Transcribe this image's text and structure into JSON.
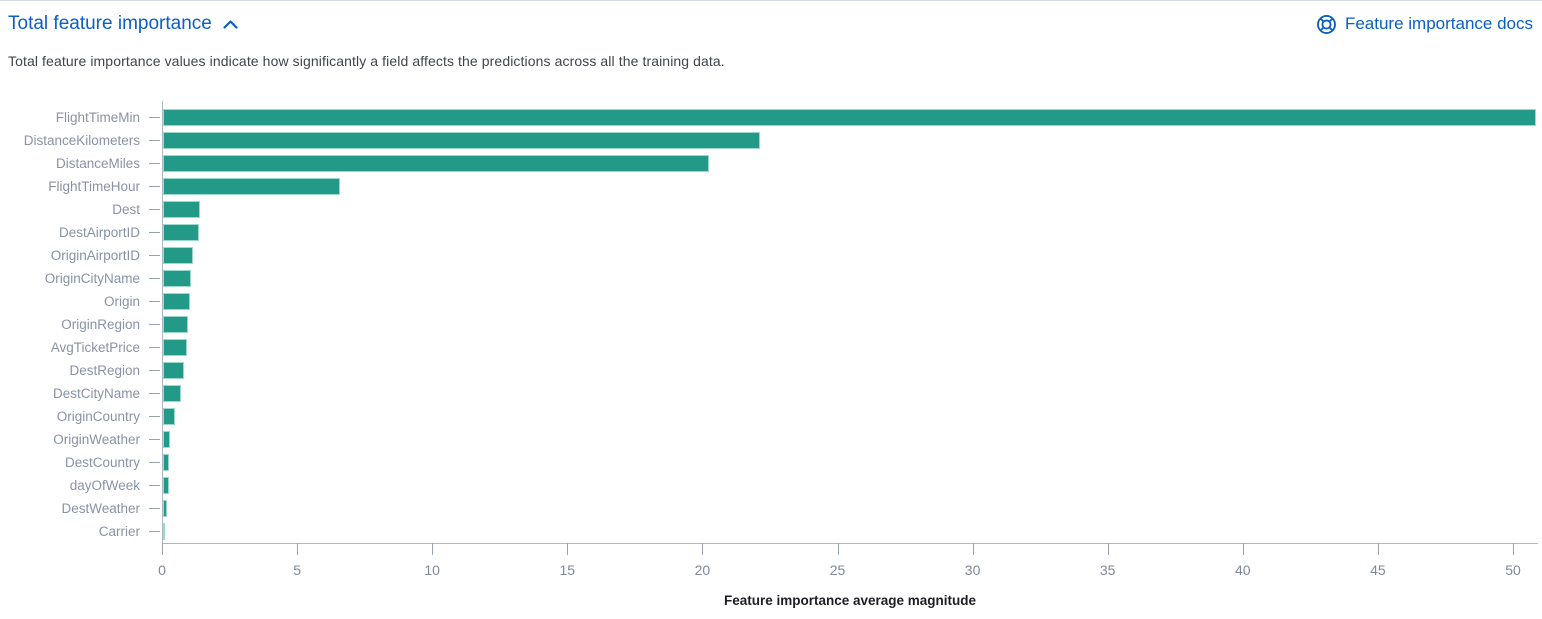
{
  "header": {
    "title": "Total feature importance",
    "docs_link": "Feature importance docs",
    "description": "Total feature importance values indicate how significantly a field affects the predictions across all the training data."
  },
  "icons": {
    "collapse": "chevron-up-icon",
    "docs": "documentation-icon"
  },
  "colors": {
    "link_blue": "#0A5FC8",
    "bar_teal": "#239987",
    "bar_stroke": "#9BD9CA",
    "axis_line": "#AFB6C4",
    "tick_mark": "#98A2B3",
    "tick_label": "#7F8899",
    "y_label": "#8A92A6",
    "axis_title_text": "#1D1E24",
    "description_text": "#3F444E"
  },
  "chart_data": {
    "type": "bar",
    "orientation": "horizontal",
    "title": "Total feature importance",
    "xlabel": "Feature importance average magnitude",
    "ylabel": "",
    "xlim": [
      0,
      50.8
    ],
    "xticks": [
      0,
      5,
      10,
      15,
      20,
      25,
      30,
      35,
      40,
      45,
      50
    ],
    "grid": false,
    "legend": false,
    "categories": [
      "FlightTimeMin",
      "DistanceKilometers",
      "DistanceMiles",
      "FlightTimeHour",
      "Dest",
      "DestAirportID",
      "OriginAirportID",
      "OriginCityName",
      "Origin",
      "OriginRegion",
      "AvgTicketPrice",
      "DestRegion",
      "DestCityName",
      "OriginCountry",
      "OriginWeather",
      "DestCountry",
      "dayOfWeek",
      "DestWeather",
      "Carrier"
    ],
    "values": [
      50.8,
      22.1,
      20.2,
      6.55,
      1.36,
      1.34,
      1.12,
      1.02,
      0.99,
      0.92,
      0.88,
      0.76,
      0.65,
      0.46,
      0.25,
      0.24,
      0.21,
      0.16,
      0.07
    ]
  }
}
